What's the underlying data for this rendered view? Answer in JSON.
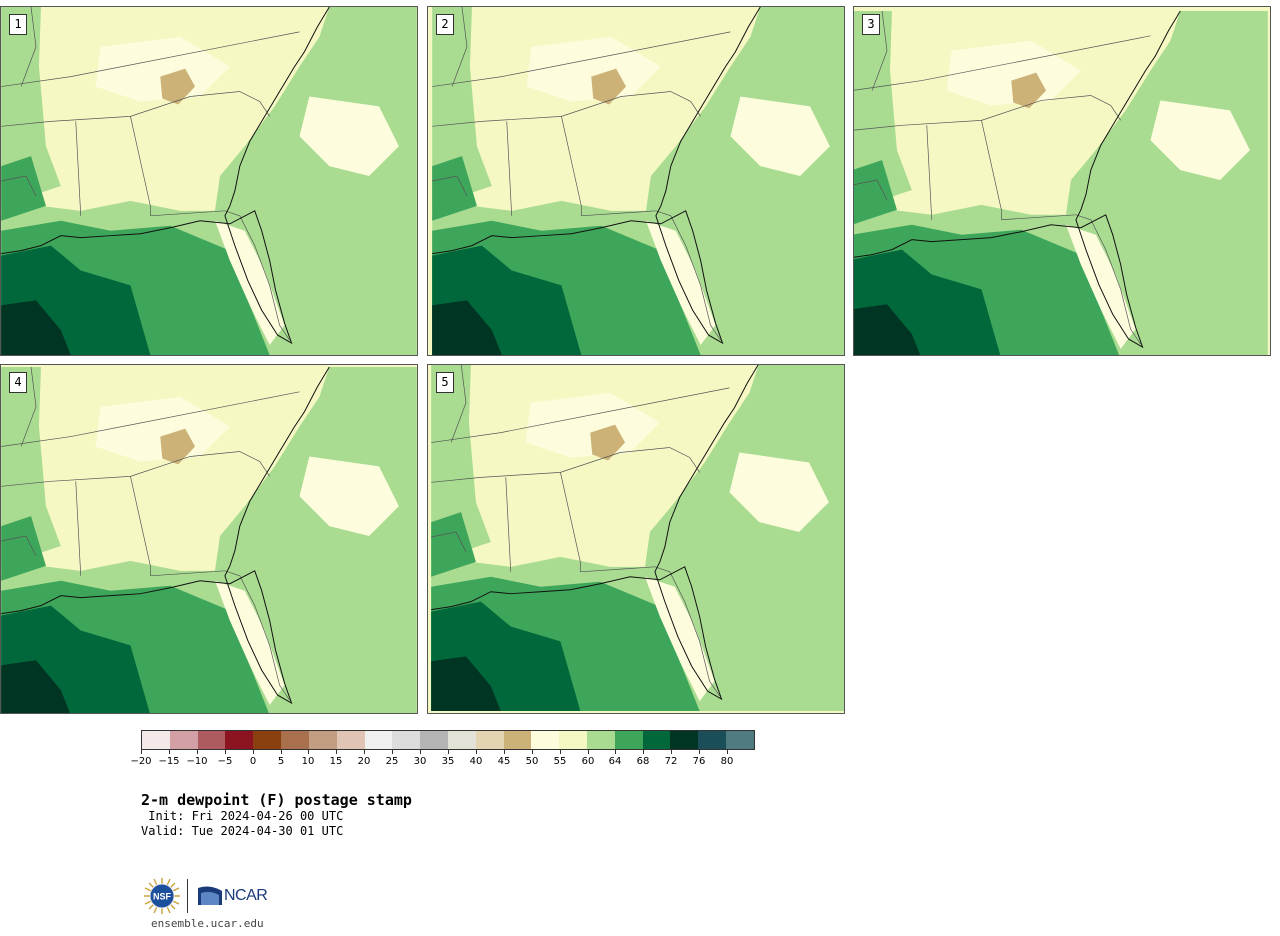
{
  "panels": [
    {
      "label": "1"
    },
    {
      "label": "2"
    },
    {
      "label": "3"
    },
    {
      "label": "4"
    },
    {
      "label": "5"
    }
  ],
  "colorbar": {
    "colors": [
      "#f3e9e9",
      "#d3a0a6",
      "#ae5b60",
      "#8c1420",
      "#8a3f0e",
      "#a8704c",
      "#c39d82",
      "#e0c4b4",
      "#f0f0f0",
      "#dcdcdc",
      "#b4b4b4",
      "#e2e2d6",
      "#e3d5b2",
      "#cdb278",
      "#fdfdde",
      "#f6f8c4",
      "#a9dc91",
      "#3ea65a",
      "#00683a",
      "#003524",
      "#1a4f59",
      "#4f7b80"
    ],
    "tick_labels": [
      "−20",
      "−15",
      "−10",
      "−5",
      "0",
      "5",
      "10",
      "15",
      "20",
      "25",
      "30",
      "35",
      "40",
      "45",
      "50",
      "55",
      "60",
      "64",
      "68",
      "72",
      "76",
      "80"
    ]
  },
  "title": "2-m dewpoint (F) postage stamp",
  "init": " Init: Fri 2024-04-26 00 UTC",
  "valid": "Valid: Tue 2024-04-30 01 UTC",
  "logos": {
    "nsf": "NSF",
    "ncar": "NCAR"
  },
  "site": "ensemble.ucar.edu"
}
